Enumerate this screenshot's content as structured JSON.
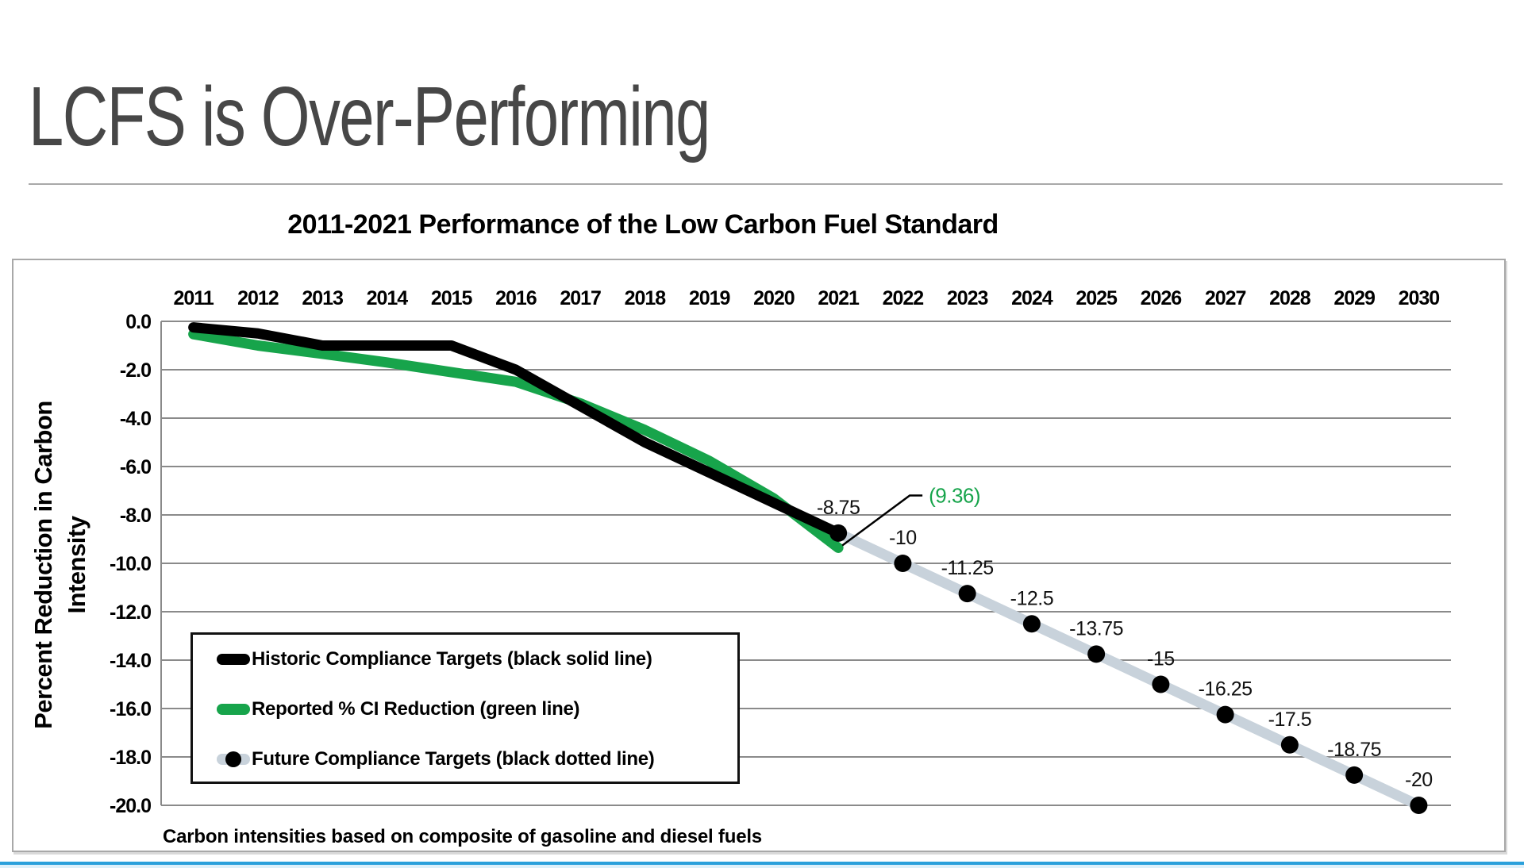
{
  "slide": {
    "title": "LCFS is Over-Performing"
  },
  "chart": {
    "title": "2011-2021 Performance of the Low Carbon Fuel Standard",
    "footnote": "Carbon intensities based on composite of gasoline and diesel fuels",
    "y_axis_title_lines": [
      "Percent Reduction in Carbon",
      "Intensity"
    ],
    "legend": [
      {
        "label": "Historic Compliance Targets (black solid line)",
        "marker": "black-solid-line"
      },
      {
        "label": "Reported % CI Reduction (green line)",
        "marker": "green-line"
      },
      {
        "label": "Future Compliance Targets (black dotted line)",
        "marker": "gray-line-with-black-dot"
      }
    ]
  },
  "colors": {
    "historic_line": "#000000",
    "reported_line": "#17a44b",
    "future_line": "#c8d2db",
    "future_marker": "#000000",
    "gridline": "#8a8a8a",
    "accent_bar": "#2aa0db"
  },
  "chart_data": {
    "type": "line",
    "title": "2011-2021 Performance of the Low Carbon Fuel Standard",
    "xlabel": "",
    "ylabel": "Percent Reduction in Carbon Intensity",
    "ylim": [
      -20,
      0
    ],
    "grid": "horizontal",
    "legend_position": "inside-lower-left",
    "categories": [
      "2011",
      "2012",
      "2013",
      "2014",
      "2015",
      "2016",
      "2017",
      "2018",
      "2019",
      "2020",
      "2021",
      "2022",
      "2023",
      "2024",
      "2025",
      "2026",
      "2027",
      "2028",
      "2029",
      "2030"
    ],
    "yticks": [
      "0.0",
      "-2.0",
      "-4.0",
      "-6.0",
      "-8.0",
      "-10.0",
      "-12.0",
      "-14.0",
      "-16.0",
      "-18.0",
      "-20.0"
    ],
    "series": [
      {
        "name": "Historic Compliance Targets (black solid line)",
        "color": "#000000",
        "style": "thick-solid",
        "x": [
          2011,
          2012,
          2013,
          2014,
          2015,
          2016,
          2017,
          2018,
          2019,
          2020,
          2021
        ],
        "values": [
          -0.25,
          -0.5,
          -1.0,
          -1.0,
          -1.0,
          -2.0,
          -3.5,
          -5.0,
          -6.25,
          -7.5,
          -8.75
        ]
      },
      {
        "name": "Reported % CI Reduction (green line)",
        "color": "#17a44b",
        "style": "thick-solid",
        "x": [
          2011,
          2012,
          2013,
          2014,
          2015,
          2016,
          2017,
          2018,
          2019,
          2020,
          2021
        ],
        "values": [
          -0.53,
          -1.0,
          -1.34,
          -1.7,
          -2.1,
          -2.5,
          -3.39,
          -4.49,
          -5.77,
          -7.32,
          -9.36
        ]
      },
      {
        "name": "Future Compliance Targets (black dotted line)",
        "color": "#c8d2db",
        "marker_color": "#000000",
        "style": "thick-line-round-black-markers",
        "x": [
          2021,
          2022,
          2023,
          2024,
          2025,
          2026,
          2027,
          2028,
          2029,
          2030
        ],
        "values": [
          -8.75,
          -10,
          -11.25,
          -12.5,
          -13.75,
          -15,
          -16.25,
          -17.5,
          -18.75,
          -20
        ]
      }
    ],
    "point_labels": [
      {
        "text": "-8.75",
        "x": 2021,
        "value": -8.75
      },
      {
        "text": "-10",
        "x": 2022,
        "value": -10
      },
      {
        "text": "-11.25",
        "x": 2023,
        "value": -11.25
      },
      {
        "text": "-12.5",
        "x": 2024,
        "value": -12.5
      },
      {
        "text": "-13.75",
        "x": 2025,
        "value": -13.75
      },
      {
        "text": "-15",
        "x": 2026,
        "value": -15
      },
      {
        "text": "-16.25",
        "x": 2027,
        "value": -16.25
      },
      {
        "text": "-17.5",
        "x": 2028,
        "value": -17.5
      },
      {
        "text": "-18.75",
        "x": 2029,
        "value": -18.75
      },
      {
        "text": "-20",
        "x": 2030,
        "value": -20
      }
    ],
    "callout": {
      "text": "(9.36)",
      "x": 2021,
      "value": -9.36,
      "color": "#17a44b"
    }
  }
}
